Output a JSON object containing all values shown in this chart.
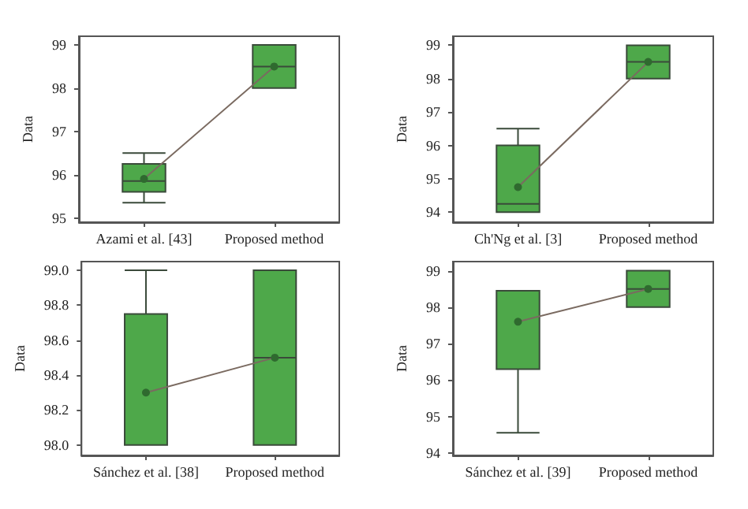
{
  "chart_data": [
    {
      "type": "box",
      "categories": [
        "Azami et al. [43]",
        "Proposed method"
      ],
      "ylabel": "Data",
      "color": "#4ea84a",
      "marker": "circle",
      "ylim": [
        94.9,
        99.2
      ],
      "yticks": [
        95,
        96,
        97,
        98,
        99
      ],
      "boxes": [
        {
          "low": 95.35,
          "q1": 95.6,
          "median": 95.85,
          "q3": 96.25,
          "high": 96.5
        },
        {
          "low": 98,
          "q1": 98,
          "median": 98.5,
          "q3": 99,
          "high": 99
        }
      ],
      "series": [
        {
          "type": "line",
          "color": "#7a6a60",
          "x": [
            "Azami et al. [43]",
            "Proposed method"
          ],
          "values": [
            95.9,
            98.5
          ]
        }
      ]
    },
    {
      "type": "box",
      "categories": [
        "Ch'Ng et al. [3]",
        "Proposed method"
      ],
      "ylabel": "Data",
      "color": "#4ea84a",
      "marker": "circle",
      "ylim": [
        93.7,
        99.27
      ],
      "yticks": [
        94,
        95,
        96,
        97,
        98,
        99
      ],
      "boxes": [
        {
          "low": 94,
          "q1": 94,
          "median": 94.25,
          "q3": 96,
          "high": 96.5
        },
        {
          "low": 98,
          "q1": 98,
          "median": 98.5,
          "q3": 99,
          "high": 99
        }
      ],
      "series": [
        {
          "type": "line",
          "color": "#7a6a60",
          "x": [
            "Ch'Ng et al. [3]",
            "Proposed method"
          ],
          "values": [
            94.75,
            98.5
          ]
        }
      ]
    },
    {
      "type": "box",
      "categories": [
        "Sánchez et al. [38]",
        "Proposed method"
      ],
      "ylabel": "Data",
      "color": "#4ea84a",
      "marker": "circle",
      "ylim": [
        97.94,
        99.05
      ],
      "yticks": [
        {
          "value": 98,
          "label": "98.0"
        },
        {
          "value": 98.2,
          "label": "98.2"
        },
        {
          "value": 98.4,
          "label": "98.4"
        },
        {
          "value": 98.6,
          "label": "98.6"
        },
        {
          "value": 98.8,
          "label": "98.8"
        },
        {
          "value": 99,
          "label": "99.0"
        }
      ],
      "boxes": [
        {
          "low": 98,
          "q1": 98,
          "median": 98,
          "q3": 98.75,
          "high": 99
        },
        {
          "low": 98,
          "q1": 98,
          "median": 98.5,
          "q3": 99,
          "high": 99
        }
      ],
      "series": [
        {
          "type": "line",
          "color": "#7a6a60",
          "x": [
            "Sánchez et al. [38]",
            "Proposed method"
          ],
          "values": [
            98.3,
            98.5
          ]
        }
      ]
    },
    {
      "type": "box",
      "categories": [
        "Sánchez et al. [39]",
        "Proposed method"
      ],
      "ylabel": "Data",
      "color": "#4ea84a",
      "marker": "circle",
      "ylim": [
        93.93,
        99.25
      ],
      "yticks": [
        94,
        95,
        96,
        97,
        98,
        99
      ],
      "boxes": [
        {
          "low": 94.55,
          "q1": 96.3,
          "median": 98.45,
          "q3": 98.45,
          "high": 98.45
        },
        {
          "low": 98,
          "q1": 98,
          "median": 98.5,
          "q3": 99,
          "high": 99
        }
      ],
      "series": [
        {
          "type": "line",
          "color": "#7a6a60",
          "x": [
            "Sánchez et al. [39]",
            "Proposed method"
          ],
          "values": [
            97.6,
            98.5
          ]
        }
      ]
    }
  ]
}
